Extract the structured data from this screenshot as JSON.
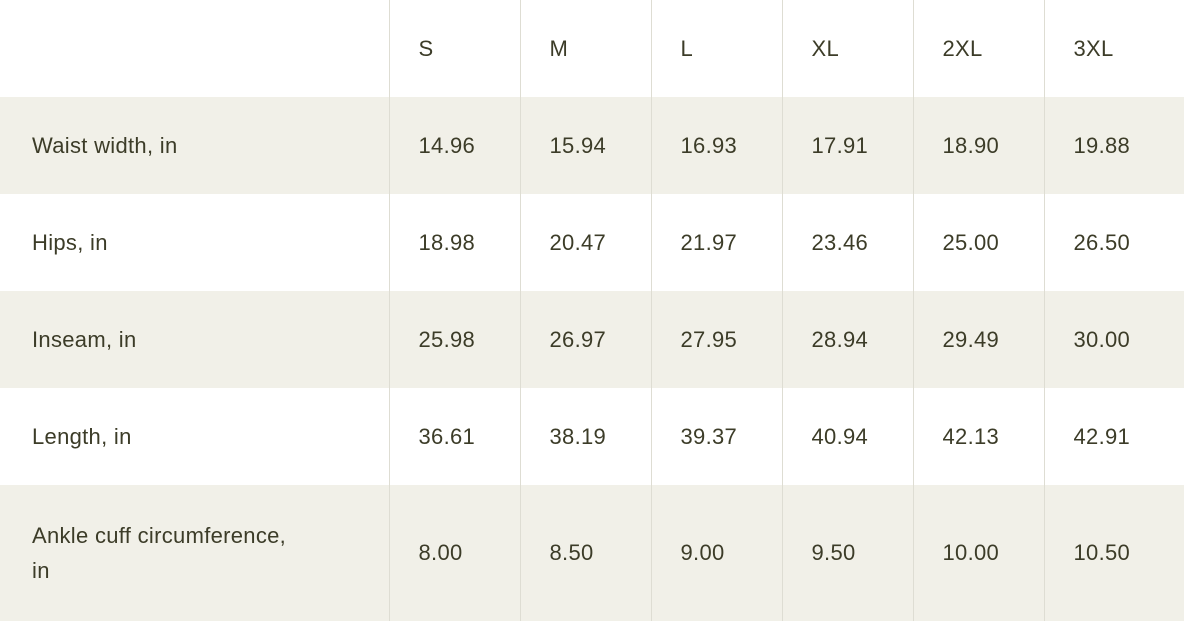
{
  "size_chart": {
    "columns": [
      "S",
      "M",
      "L",
      "XL",
      "2XL",
      "3XL"
    ],
    "rows": [
      {
        "label": "Waist width, in",
        "values": [
          "14.96",
          "15.94",
          "16.93",
          "17.91",
          "18.90",
          "19.88"
        ]
      },
      {
        "label": "Hips, in",
        "values": [
          "18.98",
          "20.47",
          "21.97",
          "23.46",
          "25.00",
          "26.50"
        ]
      },
      {
        "label": "Inseam, in",
        "values": [
          "25.98",
          "26.97",
          "27.95",
          "28.94",
          "29.49",
          "30.00"
        ]
      },
      {
        "label": "Length, in",
        "values": [
          "36.61",
          "38.19",
          "39.37",
          "40.94",
          "42.13",
          "42.91"
        ]
      },
      {
        "label": "Ankle cuff circumference, in",
        "values": [
          "8.00",
          "8.50",
          "9.00",
          "9.50",
          "10.00",
          "10.50"
        ]
      }
    ],
    "colors": {
      "text": "#3c3c28",
      "row_alt_bg": "#f1f0e8",
      "row_bg": "#ffffff",
      "column_divider": "#deddd3"
    }
  }
}
